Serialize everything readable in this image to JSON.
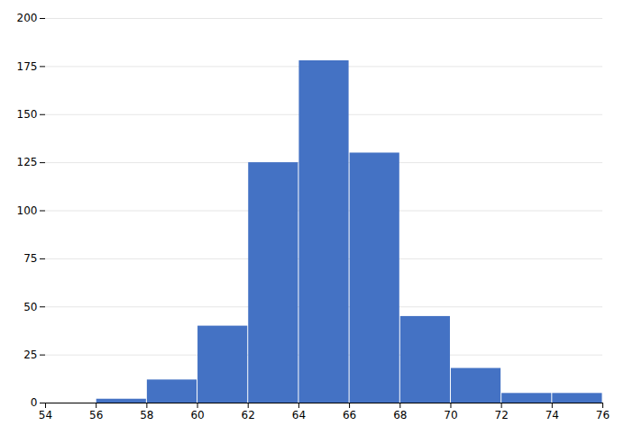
{
  "chart_data": {
    "type": "histogram",
    "bins": [
      54,
      56,
      58,
      60,
      62,
      64,
      66,
      68,
      70,
      72,
      74,
      76
    ],
    "values": [
      0,
      2,
      12,
      40,
      125,
      178,
      130,
      45,
      18,
      5,
      5
    ],
    "color": "#4472C4",
    "xlim": [
      54,
      76
    ],
    "ylim": [
      0,
      200
    ],
    "xticks": [
      54,
      56,
      58,
      60,
      62,
      64,
      66,
      68,
      70,
      72,
      74,
      76
    ],
    "yticks": [
      0,
      25,
      50,
      75,
      100,
      125,
      150,
      175,
      200
    ],
    "grid": "y"
  }
}
